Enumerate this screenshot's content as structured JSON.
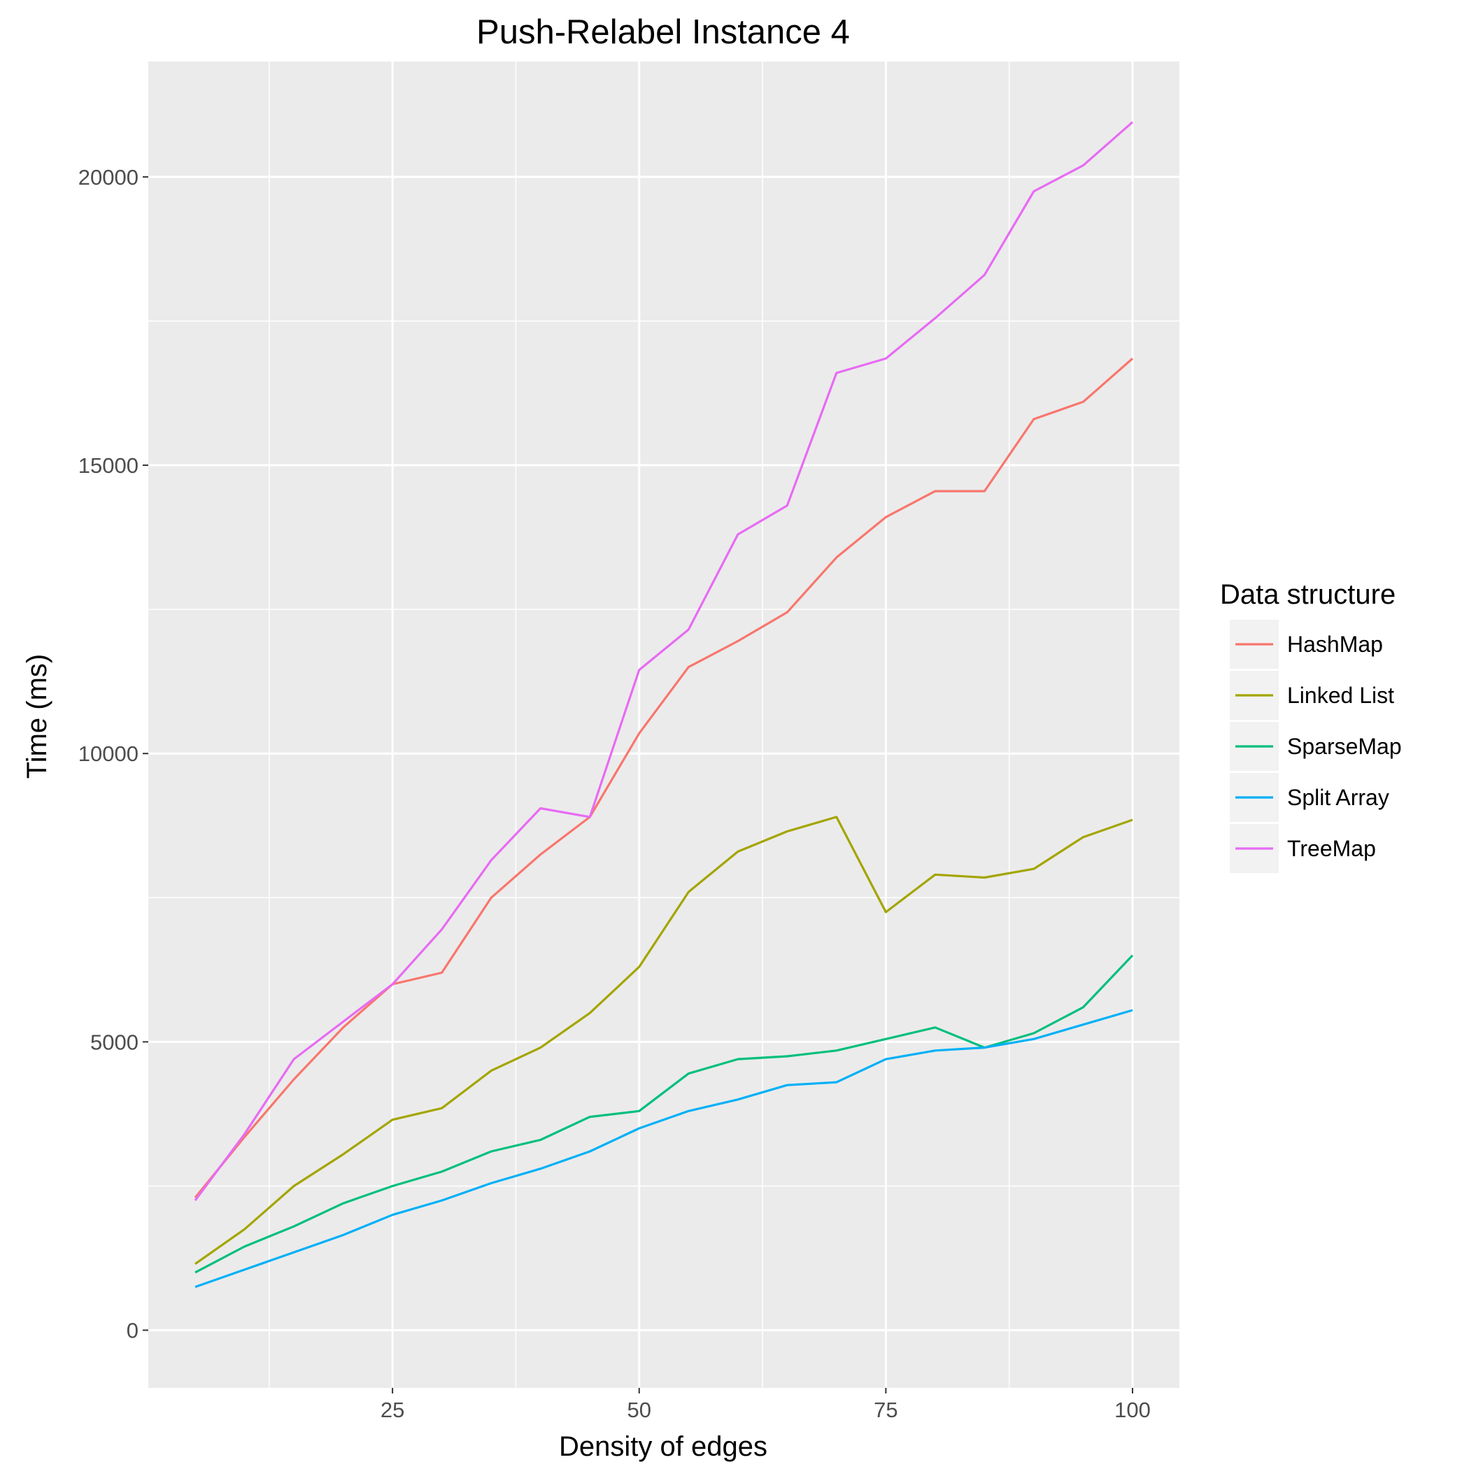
{
  "chart_data": {
    "type": "line",
    "title": "Push-Relabel Instance 4",
    "xlabel": "Density of edges",
    "ylabel": "Time (ms)",
    "xlim": [
      0.25,
      104.75
    ],
    "ylim": [
      -1000,
      22000
    ],
    "x_ticks": [
      25,
      50,
      75,
      100
    ],
    "x_tick_labels": [
      "25",
      "50",
      "75",
      "100"
    ],
    "y_ticks": [
      0,
      5000,
      10000,
      15000,
      20000
    ],
    "y_tick_labels": [
      "0",
      "5000",
      "10000",
      "15000",
      "20000"
    ],
    "grid": true,
    "legend": {
      "title": "Data structure",
      "position": "right"
    },
    "x": [
      5,
      10,
      15,
      20,
      25,
      30,
      35,
      40,
      45,
      50,
      55,
      60,
      65,
      70,
      75,
      80,
      85,
      90,
      95,
      100
    ],
    "series": [
      {
        "name": "HashMap",
        "color": "#F8766D",
        "values": [
          2300,
          3350,
          4350,
          5250,
          6000,
          6200,
          7500,
          8250,
          8900,
          10350,
          11500,
          11950,
          12450,
          13400,
          14100,
          14550,
          14550,
          15800,
          16100,
          16850
        ]
      },
      {
        "name": "Linked List",
        "color": "#A3A500",
        "values": [
          1150,
          1750,
          2500,
          3050,
          3650,
          3850,
          4500,
          4900,
          5500,
          6300,
          7600,
          8300,
          8650,
          8900,
          7250,
          7900,
          7850,
          8000,
          8550,
          8850
        ]
      },
      {
        "name": "SparseMap",
        "color": "#00BF7D",
        "values": [
          1000,
          1450,
          1800,
          2200,
          2500,
          2750,
          3100,
          3300,
          3700,
          3800,
          4450,
          4700,
          4750,
          4850,
          5050,
          5250,
          4900,
          5150,
          5600,
          6500
        ]
      },
      {
        "name": "Split Array",
        "color": "#00B0F6",
        "values": [
          750,
          1050,
          1350,
          1650,
          2000,
          2250,
          2550,
          2800,
          3100,
          3500,
          3800,
          4000,
          4250,
          4300,
          4700,
          4850,
          4900,
          5050,
          5300,
          5550
        ]
      },
      {
        "name": "TreeMap",
        "color": "#E76BF3",
        "values": [
          2250,
          3400,
          4700,
          5350,
          6000,
          6950,
          8150,
          9050,
          8900,
          11450,
          12150,
          13800,
          14300,
          16600,
          16850,
          17550,
          18300,
          19750,
          20200,
          20950
        ]
      }
    ]
  }
}
